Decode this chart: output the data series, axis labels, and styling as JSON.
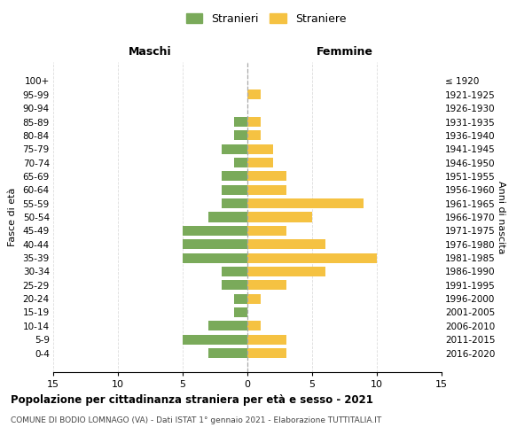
{
  "age_groups": [
    "100+",
    "95-99",
    "90-94",
    "85-89",
    "80-84",
    "75-79",
    "70-74",
    "65-69",
    "60-64",
    "55-59",
    "50-54",
    "45-49",
    "40-44",
    "35-39",
    "30-34",
    "25-29",
    "20-24",
    "15-19",
    "10-14",
    "5-9",
    "0-4"
  ],
  "birth_years": [
    "≤ 1920",
    "1921-1925",
    "1926-1930",
    "1931-1935",
    "1936-1940",
    "1941-1945",
    "1946-1950",
    "1951-1955",
    "1956-1960",
    "1961-1965",
    "1966-1970",
    "1971-1975",
    "1976-1980",
    "1981-1985",
    "1986-1990",
    "1991-1995",
    "1996-2000",
    "2001-2005",
    "2006-2010",
    "2011-2015",
    "2016-2020"
  ],
  "males": [
    0,
    0,
    0,
    1,
    1,
    2,
    1,
    2,
    2,
    2,
    3,
    5,
    5,
    5,
    2,
    2,
    1,
    1,
    3,
    5,
    3
  ],
  "females": [
    0,
    1,
    0,
    1,
    1,
    2,
    2,
    3,
    3,
    9,
    5,
    3,
    6,
    10,
    6,
    3,
    1,
    0,
    1,
    3,
    3
  ],
  "male_color": "#7aaa5a",
  "female_color": "#f5c242",
  "title": "Popolazione per cittadinanza straniera per età e sesso - 2021",
  "subtitle": "COMUNE DI BODIO LOMNAGO (VA) - Dati ISTAT 1° gennaio 2021 - Elaborazione TUTTITALIA.IT",
  "legend_male": "Stranieri",
  "legend_female": "Straniere",
  "xlabel_left": "Maschi",
  "xlabel_right": "Femmine",
  "ylabel_left": "Fasce di età",
  "ylabel_right": "Anni di nascita",
  "xlim": 15,
  "background_color": "#ffffff",
  "grid_color": "#dddddd"
}
